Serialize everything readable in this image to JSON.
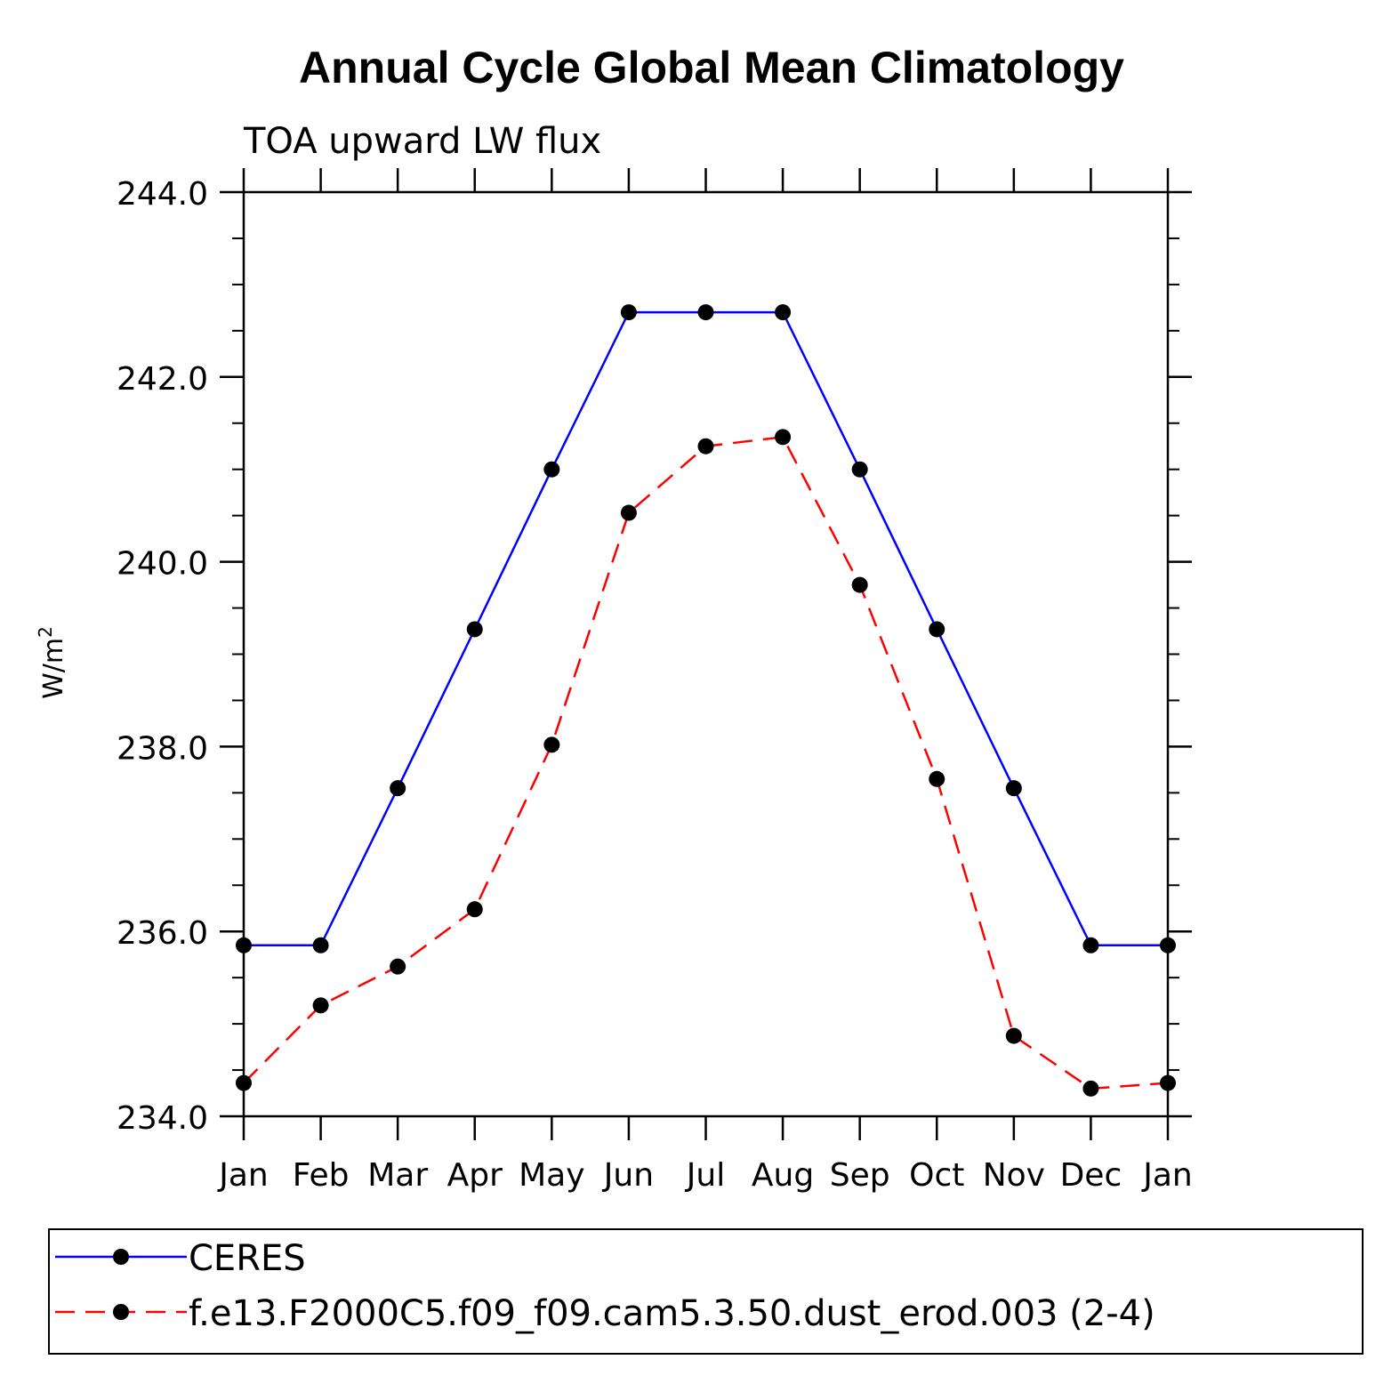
{
  "chart_data": {
    "type": "line",
    "title": "Annual Cycle Global Mean Climatology",
    "subtitle": "TOA upward LW flux",
    "ylabel": "W/m",
    "ylabel_superscript": "2",
    "xlabel": "",
    "categories": [
      "Jan",
      "Feb",
      "Mar",
      "Apr",
      "May",
      "Jun",
      "Jul",
      "Aug",
      "Sep",
      "Oct",
      "Nov",
      "Dec",
      "Jan"
    ],
    "ylim": [
      234.0,
      244.0
    ],
    "yticks": [
      "234.0",
      "236.0",
      "238.0",
      "240.0",
      "242.0",
      "244.0"
    ],
    "grid": false,
    "legend_position": "bottom",
    "series": [
      {
        "name": "CERES",
        "color": "#0000ff",
        "dash": "solid",
        "marker": "filled-circle",
        "values": [
          235.85,
          235.85,
          237.55,
          239.27,
          241.0,
          242.7,
          242.7,
          242.7,
          241.0,
          239.27,
          237.55,
          235.85,
          235.85
        ]
      },
      {
        "name": "f.e13.F2000C5.f09_f09.cam5.3.50.dust_erod.003 (2-4)",
        "color": "#ff0000",
        "dash": "dashed",
        "marker": "filled-circle",
        "values": [
          234.36,
          235.2,
          235.62,
          236.24,
          238.02,
          240.53,
          241.25,
          241.35,
          239.75,
          237.65,
          234.87,
          234.3,
          234.36
        ]
      }
    ]
  }
}
